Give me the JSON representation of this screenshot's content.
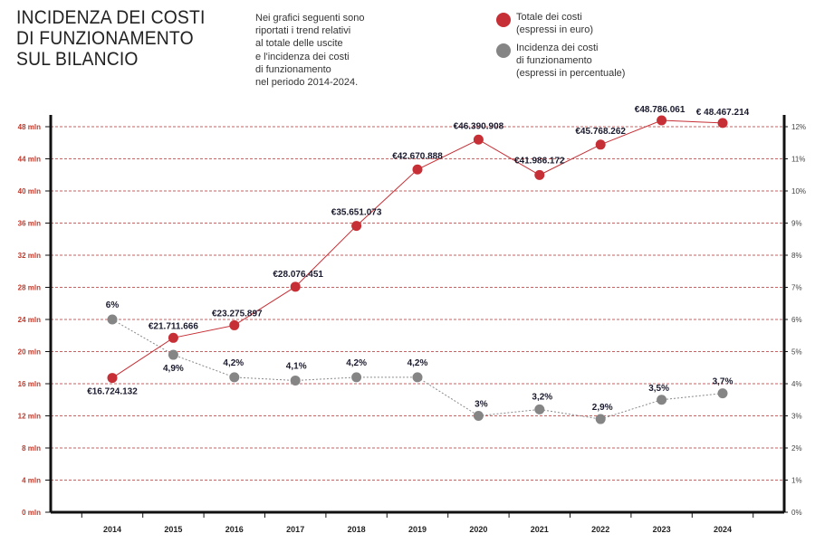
{
  "header": {
    "title_lines": [
      "INCIDENZA DEI COSTI",
      "DI FUNZIONAMENTO",
      "SUL BILANCIO"
    ],
    "description_lines": [
      "Nei grafici seguenti sono",
      "riportati i trend relativi",
      "al totale delle uscite",
      "e l'incidenza dei costi",
      "di funzionamento",
      "nel periodo 2014-2024."
    ]
  },
  "legend": [
    {
      "lines": [
        "Totale dei costi",
        "(espressi in euro)"
      ],
      "color": "#c62f35"
    },
    {
      "lines": [
        "Incidenza dei costi",
        "di funzionamento",
        "(espressi in percentuale)"
      ],
      "color": "#858585"
    }
  ],
  "chart_data": {
    "type": "line",
    "title": "INCIDENZA DEI COSTI DI FUNZIONAMENTO SUL BILANCIO",
    "x": [
      "2014",
      "2015",
      "2016",
      "2017",
      "2018",
      "2019",
      "2020",
      "2021",
      "2022",
      "2023",
      "2024"
    ],
    "y_left_ticks": [
      "0 mln",
      "4 mln",
      "8 mln",
      "12 mln",
      "16 mln",
      "20 mln",
      "24 mln",
      "28 mln",
      "32 mln",
      "36 mln",
      "40 mln",
      "44 mln",
      "48 mln"
    ],
    "y_left_range": [
      0,
      48
    ],
    "y_right_ticks": [
      "0%",
      "1%",
      "2%",
      "3%",
      "4%",
      "5%",
      "6%",
      "7%",
      "8%",
      "9%",
      "10%",
      "11%",
      "12%"
    ],
    "y_right_range": [
      0,
      12
    ],
    "grid": true,
    "series": [
      {
        "name": "Totale dei costi",
        "axis": "left",
        "color": "#c62f35",
        "values": [
          16.724132,
          21.711666,
          23.275897,
          28.076451,
          35.651073,
          42.670888,
          46.390908,
          41.986172,
          45.768262,
          48.786061,
          48.467214
        ],
        "labels": [
          "€16.724.132",
          "€21.711.666",
          "€23.275.897",
          "€28.076.451",
          "€35.651.073",
          "€42.670.888",
          "€46.390.908",
          "€41.986.172",
          "€45.768.262",
          "€48.786.061",
          "€ 48.467.214"
        ]
      },
      {
        "name": "Incidenza dei costi di funzionamento",
        "axis": "right",
        "color": "#858585",
        "values": [
          6,
          4.9,
          4.2,
          4.1,
          4.2,
          4.2,
          3,
          3.2,
          2.9,
          3.5,
          3.7
        ],
        "labels": [
          "6%",
          "4,9%",
          "4,2%",
          "4,1%",
          "4,2%",
          "4,2%",
          "3%",
          "3,2%",
          "2,9%",
          "3,5%",
          "3,7%"
        ]
      }
    ]
  }
}
